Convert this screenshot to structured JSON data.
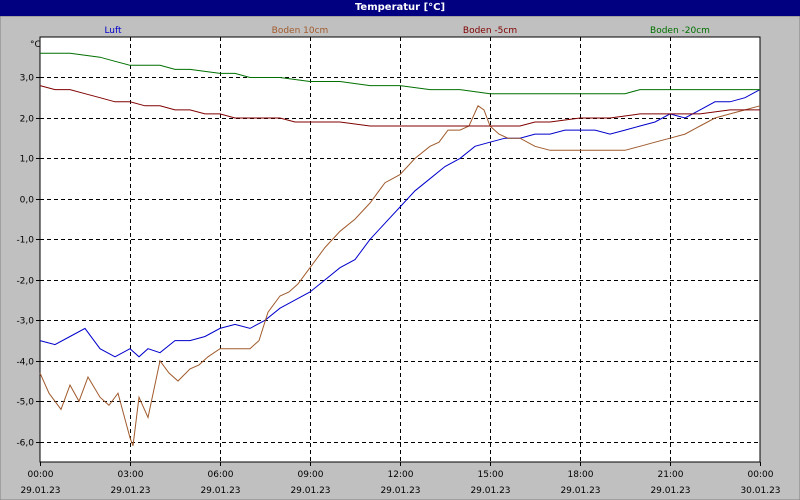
{
  "window": {
    "title": "Temperatur [°C]"
  },
  "chart_data": {
    "type": "line",
    "title": "Temperatur [°C]",
    "ylabel": "°C",
    "xlabel": "",
    "ylim": [
      -6.5,
      4.0
    ],
    "yticks": [
      {
        "value": 3.0,
        "label": "3,0"
      },
      {
        "value": 2.0,
        "label": "2,0"
      },
      {
        "value": 1.0,
        "label": "1,0"
      },
      {
        "value": 0.0,
        "label": "0,0"
      },
      {
        "value": -1.0,
        "label": "-1,0"
      },
      {
        "value": -2.0,
        "label": "-2,0"
      },
      {
        "value": -3.0,
        "label": "-3,0"
      },
      {
        "value": -4.0,
        "label": "-4,0"
      },
      {
        "value": -5.0,
        "label": "-5,0"
      },
      {
        "value": -6.0,
        "label": "-6,0"
      }
    ],
    "xlim": [
      0,
      24
    ],
    "xticks": [
      {
        "value": 0,
        "time": "00:00",
        "date": "29.01.23"
      },
      {
        "value": 3,
        "time": "03:00",
        "date": "29.01.23"
      },
      {
        "value": 6,
        "time": "06:00",
        "date": "29.01.23"
      },
      {
        "value": 9,
        "time": "09:00",
        "date": "29.01.23"
      },
      {
        "value": 12,
        "time": "12:00",
        "date": "29.01.23"
      },
      {
        "value": 15,
        "time": "15:00",
        "date": "29.01.23"
      },
      {
        "value": 18,
        "time": "18:00",
        "date": "29.01.23"
      },
      {
        "value": 21,
        "time": "21:00",
        "date": "29.01.23"
      },
      {
        "value": 24,
        "time": "00:00",
        "date": "30.01.23"
      }
    ],
    "grid": true,
    "legend_position": "top",
    "series": [
      {
        "name": "Luft",
        "color": "#0000cc",
        "x": [
          0,
          0.5,
          1,
          1.5,
          2,
          2.5,
          3,
          3.3,
          3.6,
          4,
          4.5,
          5,
          5.5,
          6,
          6.5,
          7,
          7.5,
          8,
          8.5,
          9,
          9.5,
          10,
          10.5,
          11,
          11.5,
          12,
          12.5,
          13,
          13.5,
          14,
          14.5,
          15,
          15.5,
          16,
          16.5,
          17,
          17.5,
          18,
          18.5,
          19,
          19.5,
          20,
          20.5,
          21,
          21.5,
          22,
          22.5,
          23,
          23.5,
          24
        ],
        "y": [
          -3.5,
          -3.6,
          -3.4,
          -3.2,
          -3.7,
          -3.9,
          -3.7,
          -3.9,
          -3.7,
          -3.8,
          -3.5,
          -3.5,
          -3.4,
          -3.2,
          -3.1,
          -3.2,
          -3.0,
          -2.7,
          -2.5,
          -2.3,
          -2.0,
          -1.7,
          -1.5,
          -1.0,
          -0.6,
          -0.2,
          0.2,
          0.5,
          0.8,
          1.0,
          1.3,
          1.4,
          1.5,
          1.5,
          1.6,
          1.6,
          1.7,
          1.7,
          1.7,
          1.6,
          1.7,
          1.8,
          1.9,
          2.1,
          2.0,
          2.2,
          2.4,
          2.4,
          2.5,
          2.7
        ]
      },
      {
        "name": "Boden 10cm",
        "color": "#a05a2c",
        "x": [
          0,
          0.3,
          0.7,
          1,
          1.3,
          1.6,
          2,
          2.3,
          2.6,
          3,
          3.1,
          3.3,
          3.6,
          4,
          4.3,
          4.6,
          5,
          5.3,
          5.6,
          6,
          6.3,
          6.6,
          7,
          7.3,
          7.6,
          8,
          8.3,
          8.6,
          9,
          9.5,
          10,
          10.5,
          11,
          11.5,
          12,
          12.5,
          13,
          13.3,
          13.6,
          14,
          14.3,
          14.6,
          14.8,
          15,
          15.3,
          15.6,
          16,
          16.5,
          17,
          17.5,
          18,
          18.5,
          19,
          19.5,
          20,
          20.5,
          21,
          21.5,
          22,
          22.5,
          23,
          23.5,
          24
        ],
        "y": [
          -4.3,
          -4.8,
          -5.2,
          -4.6,
          -5.0,
          -4.4,
          -4.9,
          -5.1,
          -4.8,
          -5.9,
          -6.1,
          -4.9,
          -5.4,
          -4.0,
          -4.3,
          -4.5,
          -4.2,
          -4.1,
          -3.9,
          -3.7,
          -3.7,
          -3.7,
          -3.7,
          -3.5,
          -2.8,
          -2.4,
          -2.3,
          -2.1,
          -1.7,
          -1.2,
          -0.8,
          -0.5,
          -0.1,
          0.4,
          0.6,
          1.0,
          1.3,
          1.4,
          1.7,
          1.7,
          1.8,
          2.3,
          2.2,
          1.8,
          1.6,
          1.5,
          1.5,
          1.3,
          1.2,
          1.2,
          1.2,
          1.2,
          1.2,
          1.2,
          1.3,
          1.4,
          1.5,
          1.6,
          1.8,
          2.0,
          2.1,
          2.2,
          2.3
        ]
      },
      {
        "name": "Boden -5cm",
        "color": "#800000",
        "x": [
          0,
          0.5,
          1,
          1.5,
          2,
          2.5,
          3,
          3.5,
          4,
          4.5,
          5,
          5.5,
          6,
          6.5,
          7,
          8,
          8.5,
          9,
          10,
          11,
          11.5,
          12,
          13,
          14,
          15,
          16,
          16.5,
          17,
          18,
          19,
          20,
          21,
          22,
          23,
          24
        ],
        "y": [
          2.8,
          2.7,
          2.7,
          2.6,
          2.5,
          2.4,
          2.4,
          2.3,
          2.3,
          2.2,
          2.2,
          2.1,
          2.1,
          2.0,
          2.0,
          2.0,
          1.9,
          1.9,
          1.9,
          1.8,
          1.8,
          1.8,
          1.8,
          1.8,
          1.8,
          1.8,
          1.9,
          1.9,
          2.0,
          2.0,
          2.1,
          2.1,
          2.1,
          2.2,
          2.2
        ]
      },
      {
        "name": "Boden -20cm",
        "color": "#007000",
        "x": [
          0,
          1,
          2,
          2.5,
          3,
          4,
          4.5,
          5,
          6,
          6.5,
          7,
          8,
          9,
          10,
          11,
          12,
          13,
          14,
          15,
          16,
          17,
          18,
          19,
          19.5,
          20,
          21,
          22,
          23,
          24
        ],
        "y": [
          3.6,
          3.6,
          3.5,
          3.4,
          3.3,
          3.3,
          3.2,
          3.2,
          3.1,
          3.1,
          3.0,
          3.0,
          2.9,
          2.9,
          2.8,
          2.8,
          2.7,
          2.7,
          2.6,
          2.6,
          2.6,
          2.6,
          2.6,
          2.6,
          2.7,
          2.7,
          2.7,
          2.7,
          2.7
        ]
      }
    ]
  }
}
